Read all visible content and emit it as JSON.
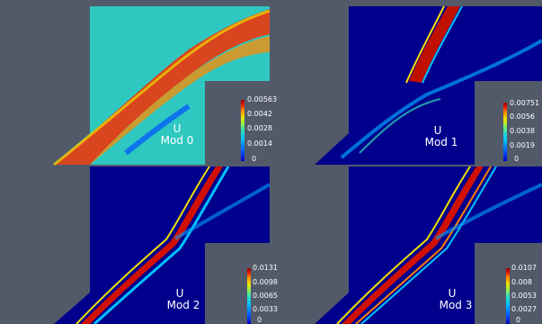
{
  "panels": [
    {
      "field": "U",
      "mode": "Mod 0",
      "ticks": [
        "0.00563",
        "0.0042",
        "0.0028",
        "0.0014",
        "0"
      ]
    },
    {
      "field": "U",
      "mode": "Mod 1",
      "ticks": [
        "0.00751",
        "0.0056",
        "0.0038",
        "0.0019",
        "0"
      ]
    },
    {
      "field": "U",
      "mode": "Mod 2",
      "ticks": [
        "0.0131",
        "0.0098",
        "0.0065",
        "0.0033",
        "0"
      ]
    },
    {
      "field": "U",
      "mode": "Mod 3",
      "ticks": [
        "0.0107",
        "0.008",
        "0.0053",
        "0.0027",
        "0"
      ]
    }
  ],
  "colormap": [
    "#0000c0",
    "#0050ff",
    "#00c0ff",
    "#30e0c0",
    "#a0f040",
    "#f0e000",
    "#ff8000",
    "#e01000",
    "#900000"
  ],
  "background_color": "#525a6a"
}
